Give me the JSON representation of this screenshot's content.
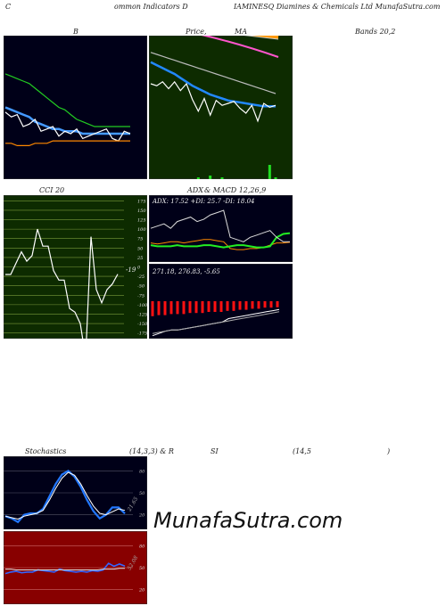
{
  "header": {
    "left": "C",
    "left2": "ommon  Indicators D",
    "right": "IAMINESQ Diamines & Chemicals Ltd MunafaSutra.com"
  },
  "row1": {
    "b_label": "B",
    "price_label": "Price,",
    "price_label2": "MA",
    "bands_label": "Bands 20,2"
  },
  "row2": {
    "cci_label": "CCI 20",
    "adx_label": "ADX",
    "macd_label": "& MACD 12,26,9",
    "adx_values": "ADX: 17.52  +DI: 25.7 -DI: 18.04",
    "macd_values": "271.18,  276.83,  -5.65",
    "cci_value": "-19"
  },
  "row3": {
    "stoch_label": "Stochastics",
    "params_label": "(14,3,3) & R",
    "si_label": "SI",
    "rsi_params": "(14,5",
    "close_paren": ")",
    "stoch_value": "21.65",
    "rsi_value": "52.08"
  },
  "watermark": "MunafaSutra.com",
  "chart_data": [
    {
      "type": "line",
      "title": "B",
      "series": [
        {
          "values": [
            74,
            73,
            72,
            71,
            70,
            68,
            66,
            64,
            62,
            60,
            59,
            57,
            55,
            54,
            53,
            52,
            52,
            52,
            52,
            52,
            52,
            52
          ],
          "color": "#22cc22"
        },
        {
          "values": [
            60,
            59,
            58,
            57,
            56,
            54,
            53,
            52,
            51,
            51,
            50,
            50,
            50,
            49,
            49,
            49,
            49,
            49,
            49,
            49,
            49,
            49
          ],
          "color": "#4499ff"
        },
        {
          "values": [
            58,
            56,
            57,
            52,
            53,
            55,
            50,
            51,
            52,
            48,
            50,
            49,
            51,
            47,
            48,
            49,
            50,
            51,
            47,
            46,
            50,
            49
          ],
          "color": "#ffffff"
        },
        {
          "values": [
            45,
            45,
            44,
            44,
            44,
            45,
            45,
            45,
            46,
            46,
            46,
            46,
            46,
            46,
            46,
            46,
            46,
            46,
            46,
            46,
            46,
            46
          ],
          "color": "#ff8800"
        }
      ],
      "ylim": [
        30,
        90
      ]
    },
    {
      "type": "line",
      "title": "Price, MA",
      "series": [
        {
          "values": [
            92,
            90,
            88,
            86,
            84,
            82,
            80,
            78,
            76,
            74,
            72,
            70,
            68,
            66,
            64,
            62,
            60,
            58,
            56,
            54,
            52,
            50
          ],
          "color": "#bbbbbb"
        },
        {
          "values": [
            82,
            79,
            76,
            73,
            70,
            66,
            62,
            58,
            55,
            52,
            49,
            47,
            45,
            43,
            42,
            41,
            40,
            39,
            38,
            37,
            37,
            37
          ],
          "color": "#2288ff"
        },
        {
          "values": [
            60,
            58,
            62,
            55,
            62,
            53,
            60,
            44,
            32,
            45,
            28,
            43,
            38,
            40,
            42,
            35,
            30,
            38,
            22,
            40,
            36,
            38
          ],
          "color": "#ffffff"
        }
      ],
      "volume": [
        0,
        0,
        0,
        0,
        0,
        0,
        0,
        0,
        1,
        0,
        2,
        0,
        1,
        0,
        0,
        0,
        0,
        0,
        0,
        0,
        8,
        1
      ],
      "ylim": [
        0,
        100
      ]
    },
    {
      "type": "line",
      "title": "CCI 20",
      "series": [
        {
          "values": [
            -20,
            -20,
            10,
            40,
            15,
            30,
            100,
            55,
            55,
            -10,
            -35,
            -35,
            -110,
            -120,
            -150,
            -240,
            80,
            -60,
            -95,
            -60,
            -45,
            -19
          ],
          "color": "#ffffff"
        }
      ],
      "yticks": [
        175,
        150,
        125,
        100,
        75,
        50,
        25,
        0,
        -25,
        -50,
        -75,
        -100,
        -125,
        -150,
        -175
      ]
    },
    {
      "type": "line",
      "title": "ADX & MACD 12,26,9",
      "series": [
        {
          "name": "ADX",
          "values": [
            17,
            16,
            17,
            18,
            18,
            17,
            18,
            19,
            20,
            20,
            19,
            18,
            12,
            11,
            11,
            12,
            12,
            13,
            15,
            17,
            17,
            17.52
          ],
          "color": "#ff8800"
        },
        {
          "name": "+DI",
          "values": [
            15,
            14,
            14,
            14,
            15,
            14,
            14,
            14,
            15,
            15,
            14,
            13,
            14,
            15,
            15,
            14,
            13,
            13,
            14,
            22,
            25,
            25.7
          ],
          "color": "#22ee22"
        },
        {
          "name": "-DI",
          "values": [
            30,
            32,
            34,
            30,
            36,
            38,
            40,
            36,
            38,
            42,
            44,
            46,
            22,
            20,
            18,
            22,
            24,
            26,
            28,
            22,
            18,
            18.04
          ],
          "color": "#dddddd"
        }
      ]
    },
    {
      "type": "bar",
      "title": "MACD",
      "values": [
        -14,
        -13,
        -13,
        -12,
        -12,
        -12,
        -11,
        -11,
        -11,
        -10,
        -10,
        -10,
        -9,
        -9,
        -8,
        -8,
        -7,
        -7,
        -6,
        -6,
        -5.65
      ],
      "color": "#ff1111",
      "series": [
        {
          "values": [
            -14,
            -12,
            -10,
            -9,
            -9,
            -8,
            -7,
            -6,
            -5,
            -4,
            -3,
            -2,
            1,
            2,
            3,
            4,
            5,
            6,
            7,
            8,
            9
          ],
          "color": "#ffffff"
        },
        {
          "values": [
            -12,
            -11,
            -10,
            -9,
            -9,
            -8,
            -7,
            -6,
            -5,
            -4,
            -3,
            -2,
            -1,
            0,
            1,
            2,
            3,
            4,
            5,
            6,
            7
          ],
          "color": "#aaaaaa"
        }
      ]
    },
    {
      "type": "line",
      "title": "Stochastics (14,3,3)",
      "series": [
        {
          "values": [
            18,
            15,
            10,
            20,
            22,
            22,
            28,
            45,
            62,
            75,
            80,
            72,
            58,
            40,
            25,
            15,
            20,
            30,
            30,
            21.65
          ],
          "color": "#2277ff"
        },
        {
          "values": [
            18,
            16,
            14,
            18,
            20,
            22,
            26,
            40,
            56,
            70,
            78,
            74,
            62,
            46,
            32,
            22,
            20,
            24,
            28,
            26
          ],
          "color": "#ffffff"
        }
      ],
      "yticks": [
        80,
        50,
        20
      ]
    },
    {
      "type": "line",
      "title": "RSI (14,5)",
      "series": [
        {
          "values": [
            42,
            44,
            45,
            43,
            44,
            44,
            47,
            46,
            45,
            44,
            48,
            46,
            45,
            44,
            45,
            44,
            46,
            45,
            47,
            56,
            52,
            55,
            52.08
          ],
          "color": "#3366ff"
        },
        {
          "values": [
            48,
            48,
            47,
            47,
            47,
            47,
            47,
            47,
            47,
            47,
            47,
            47,
            47,
            47,
            47,
            47,
            47,
            47,
            48,
            48,
            48,
            49,
            49
          ],
          "color": "#dddddd"
        }
      ],
      "yticks": [
        80,
        50,
        20
      ]
    }
  ]
}
